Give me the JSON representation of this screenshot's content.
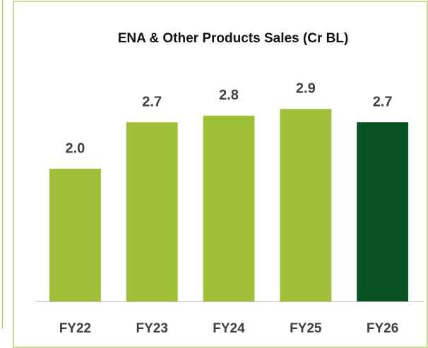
{
  "chart_data": {
    "type": "bar",
    "title": "ENA & Other Products Sales (Cr BL)",
    "categories": [
      "FY22",
      "FY23",
      "FY24",
      "FY25",
      "FY26"
    ],
    "values": [
      2.0,
      2.7,
      2.8,
      2.9,
      2.7
    ],
    "value_labels": [
      "2.0",
      "2.7",
      "2.8",
      "2.9",
      "2.7"
    ],
    "colors": [
      "#9fbf3b",
      "#9fbf3b",
      "#9fbf3b",
      "#9fbf3b",
      "#0b5223"
    ],
    "ylim": [
      0,
      3.5
    ]
  }
}
